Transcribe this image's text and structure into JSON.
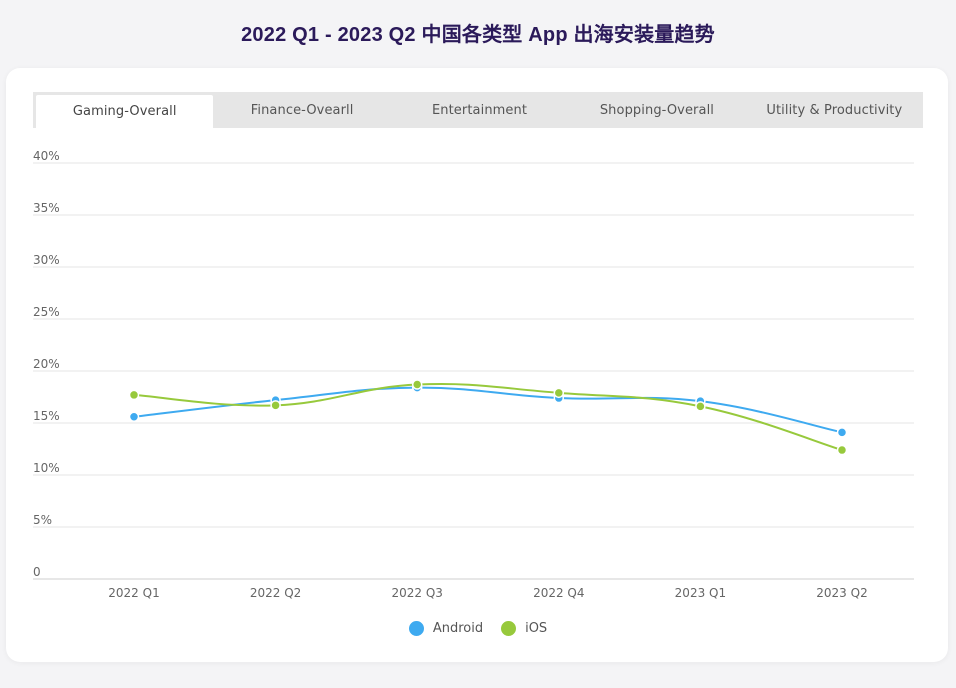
{
  "page": {
    "title": "2022 Q1 - 2023 Q2 中国各类型 App 出海安装量趋势"
  },
  "tabs": [
    {
      "label": "Gaming-Overall",
      "active": true
    },
    {
      "label": "Finance-Ovearll",
      "active": false
    },
    {
      "label": "Entertainment",
      "active": false
    },
    {
      "label": "Shopping-Overall",
      "active": false
    },
    {
      "label": "Utility & Productivity",
      "active": false
    }
  ],
  "legend": [
    {
      "label": "Android",
      "color": "#3eaaf0"
    },
    {
      "label": "iOS",
      "color": "#97c93c"
    }
  ],
  "chart_data": {
    "type": "line",
    "title": "",
    "xlabel": "",
    "ylabel": "",
    "categories": [
      "2022 Q1",
      "2022 Q2",
      "2022 Q3",
      "2022 Q4",
      "2023 Q1",
      "2023 Q2"
    ],
    "yticks": [
      "0",
      "5%",
      "10%",
      "15%",
      "20%",
      "25%",
      "30%",
      "35%",
      "40%"
    ],
    "ylim": [
      0,
      40
    ],
    "grid": true,
    "legend_position": "bottom-center",
    "series": [
      {
        "name": "Android",
        "color": "#3eaaf0",
        "values": [
          15.6,
          17.2,
          18.4,
          17.4,
          17.1,
          14.1
        ]
      },
      {
        "name": "iOS",
        "color": "#97c93c",
        "values": [
          17.7,
          16.7,
          18.7,
          17.9,
          16.6,
          12.4
        ]
      }
    ]
  }
}
